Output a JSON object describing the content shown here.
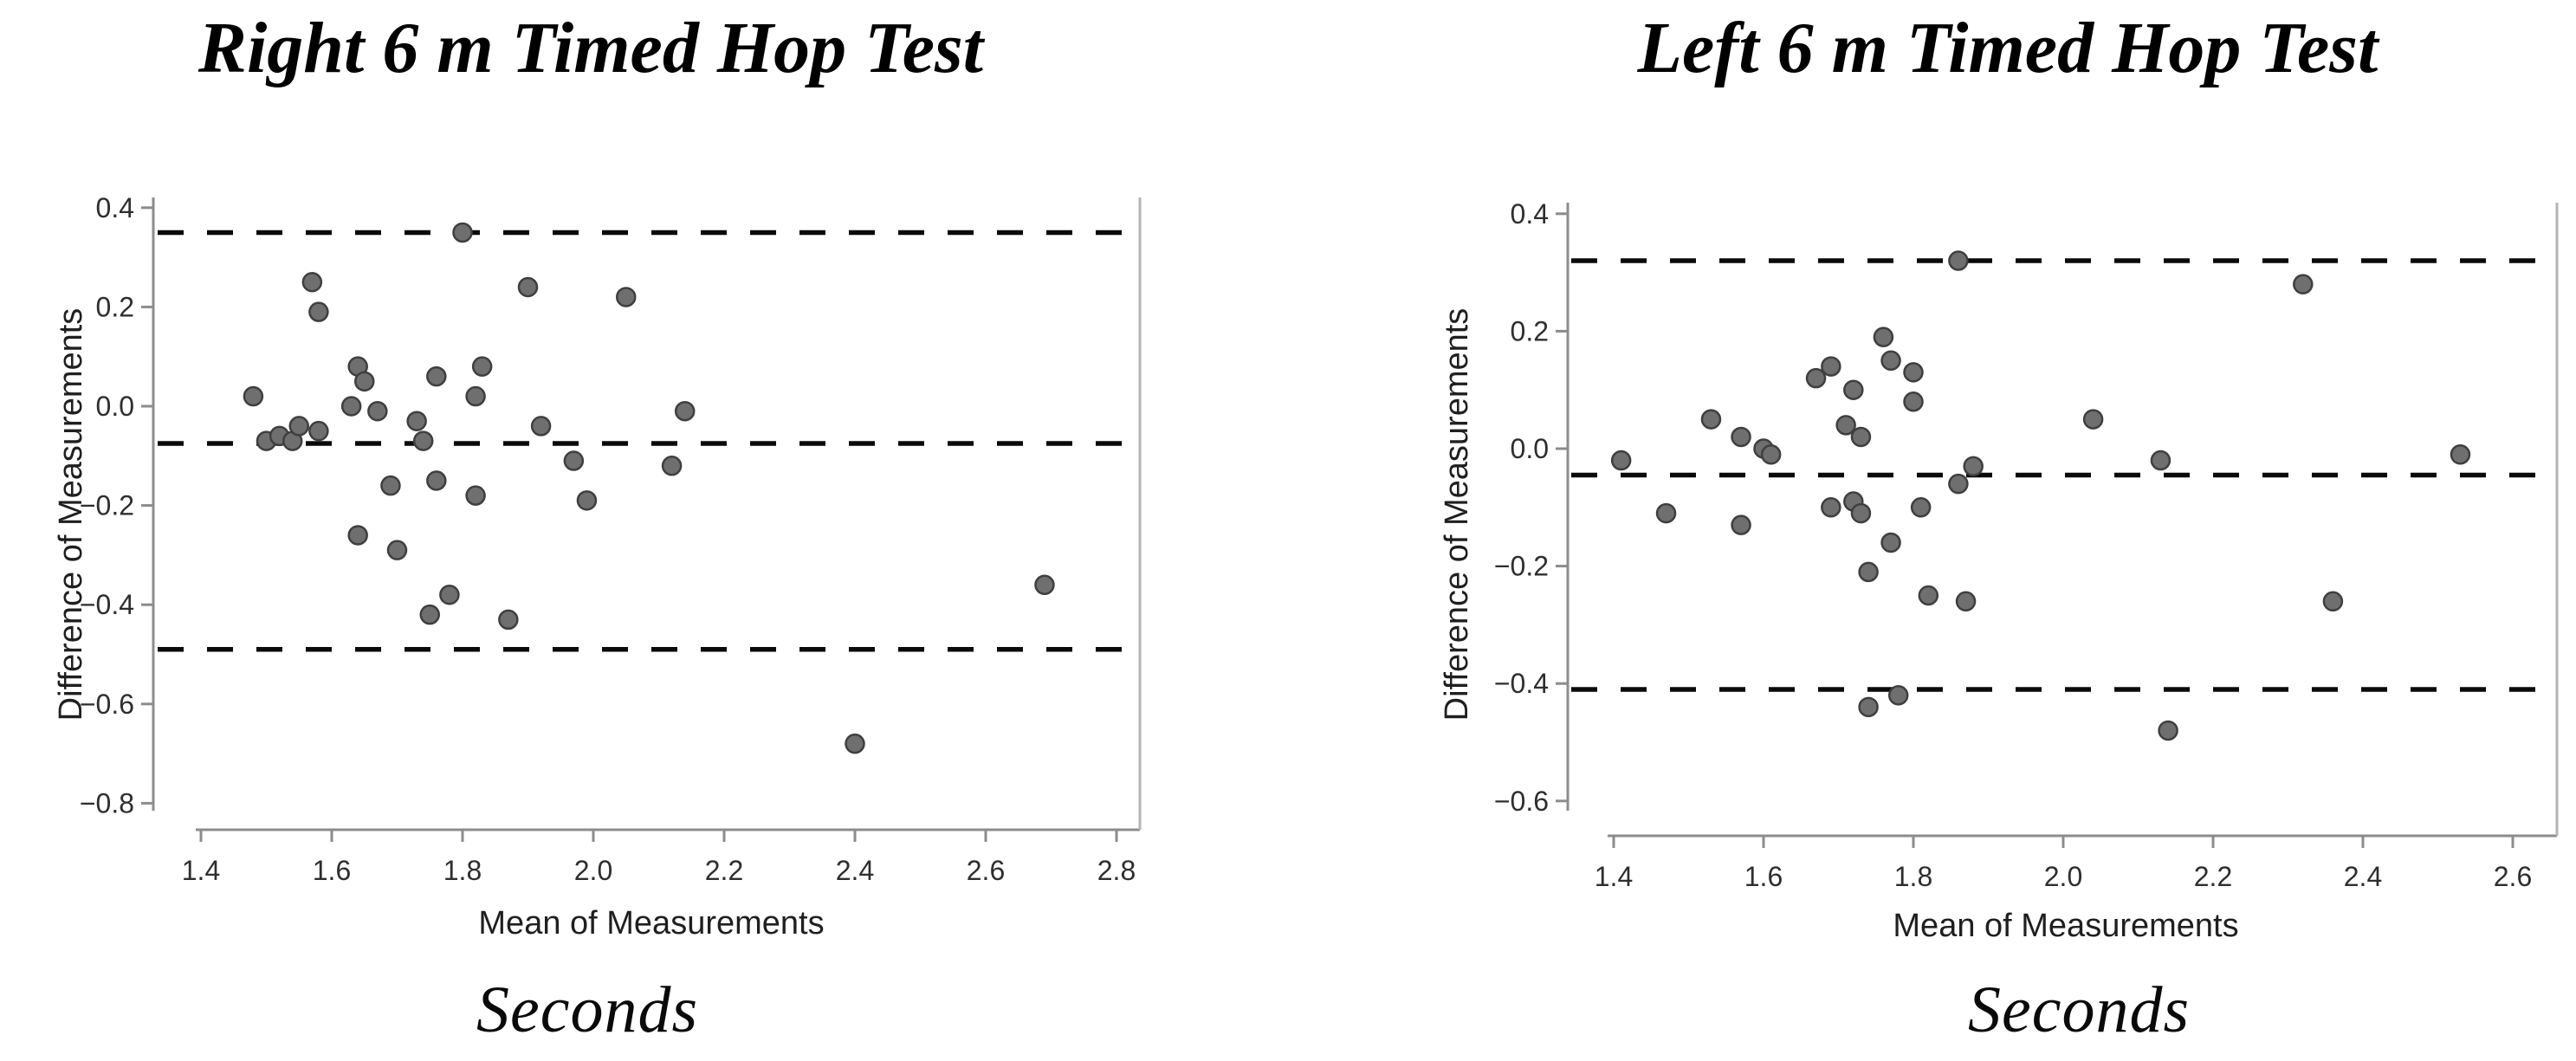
{
  "figure": {
    "background_color": "#ffffff",
    "point_fill_color": "#6f6f6f",
    "point_edge_color": "#3f3f3f",
    "dashed_line_color": "#0a0a0a",
    "axis_color": "#8c8c8c",
    "border_color": "#b5b5b5",
    "tick_label_color": "#2e2e2e"
  },
  "chart_data": [
    {
      "type": "scatter",
      "title": "Right 6 m Timed Hop Test",
      "xlabel": "Mean of Measurements",
      "ylabel": "Difference of Measurements",
      "unit_label": "Seconds",
      "xlim": [
        1.33,
        2.85
      ],
      "ylim": [
        -0.82,
        0.42
      ],
      "x_ticks": [
        1.4,
        1.6,
        1.8,
        2.0,
        2.2,
        2.4,
        2.6,
        2.8
      ],
      "y_ticks": [
        0.4,
        0.2,
        0.0,
        -0.2,
        -0.4,
        -0.6,
        -0.8
      ],
      "grid": false,
      "legend": "none",
      "lines": {
        "upper_loa": 0.35,
        "mean": -0.075,
        "lower_loa": -0.49
      },
      "points": [
        [
          1.48,
          0.02
        ],
        [
          1.5,
          -0.07
        ],
        [
          1.52,
          -0.06
        ],
        [
          1.54,
          -0.07
        ],
        [
          1.55,
          -0.04
        ],
        [
          1.57,
          0.25
        ],
        [
          1.58,
          0.19
        ],
        [
          1.58,
          -0.05
        ],
        [
          1.63,
          0.0
        ],
        [
          1.64,
          0.08
        ],
        [
          1.64,
          -0.26
        ],
        [
          1.65,
          0.05
        ],
        [
          1.67,
          -0.01
        ],
        [
          1.69,
          -0.16
        ],
        [
          1.7,
          -0.29
        ],
        [
          1.73,
          -0.03
        ],
        [
          1.74,
          -0.07
        ],
        [
          1.75,
          -0.42
        ],
        [
          1.76,
          0.06
        ],
        [
          1.76,
          -0.15
        ],
        [
          1.78,
          -0.38
        ],
        [
          1.8,
          0.35
        ],
        [
          1.82,
          0.02
        ],
        [
          1.82,
          -0.18
        ],
        [
          1.83,
          0.08
        ],
        [
          1.87,
          -0.43
        ],
        [
          1.9,
          0.24
        ],
        [
          1.92,
          -0.04
        ],
        [
          1.97,
          -0.11
        ],
        [
          1.99,
          -0.19
        ],
        [
          2.05,
          0.22
        ],
        [
          2.12,
          -0.12
        ],
        [
          2.14,
          -0.01
        ],
        [
          2.4,
          -0.68
        ],
        [
          2.69,
          -0.36
        ]
      ]
    },
    {
      "type": "scatter",
      "title": "Left 6 m Timed Hop Test",
      "xlabel": "Mean of Measurements",
      "ylabel": "Difference of Measurements",
      "unit_label": "Seconds",
      "xlim": [
        1.34,
        2.66
      ],
      "ylim": [
        -0.62,
        0.42
      ],
      "x_ticks": [
        1.4,
        1.6,
        1.8,
        2.0,
        2.2,
        2.4,
        2.6
      ],
      "y_ticks": [
        0.4,
        0.2,
        0.0,
        -0.2,
        -0.4,
        -0.6
      ],
      "grid": false,
      "legend": "none",
      "lines": {
        "upper_loa": 0.32,
        "mean": -0.045,
        "lower_loa": -0.41
      },
      "points": [
        [
          1.41,
          -0.02
        ],
        [
          1.47,
          -0.11
        ],
        [
          1.53,
          0.05
        ],
        [
          1.57,
          0.02
        ],
        [
          1.57,
          -0.13
        ],
        [
          1.6,
          0.0
        ],
        [
          1.61,
          -0.01
        ],
        [
          1.67,
          0.12
        ],
        [
          1.69,
          0.14
        ],
        [
          1.69,
          -0.1
        ],
        [
          1.71,
          0.04
        ],
        [
          1.72,
          0.1
        ],
        [
          1.72,
          -0.09
        ],
        [
          1.73,
          0.02
        ],
        [
          1.73,
          -0.11
        ],
        [
          1.74,
          -0.21
        ],
        [
          1.74,
          -0.44
        ],
        [
          1.76,
          0.19
        ],
        [
          1.77,
          0.15
        ],
        [
          1.77,
          -0.16
        ],
        [
          1.78,
          -0.42
        ],
        [
          1.8,
          0.13
        ],
        [
          1.8,
          0.08
        ],
        [
          1.81,
          -0.1
        ],
        [
          1.82,
          -0.25
        ],
        [
          1.86,
          0.32
        ],
        [
          1.86,
          -0.06
        ],
        [
          1.87,
          -0.26
        ],
        [
          1.88,
          -0.03
        ],
        [
          2.04,
          0.05
        ],
        [
          2.13,
          -0.02
        ],
        [
          2.14,
          -0.48
        ],
        [
          2.32,
          0.28
        ],
        [
          2.36,
          -0.26
        ],
        [
          2.53,
          -0.01
        ]
      ]
    }
  ]
}
